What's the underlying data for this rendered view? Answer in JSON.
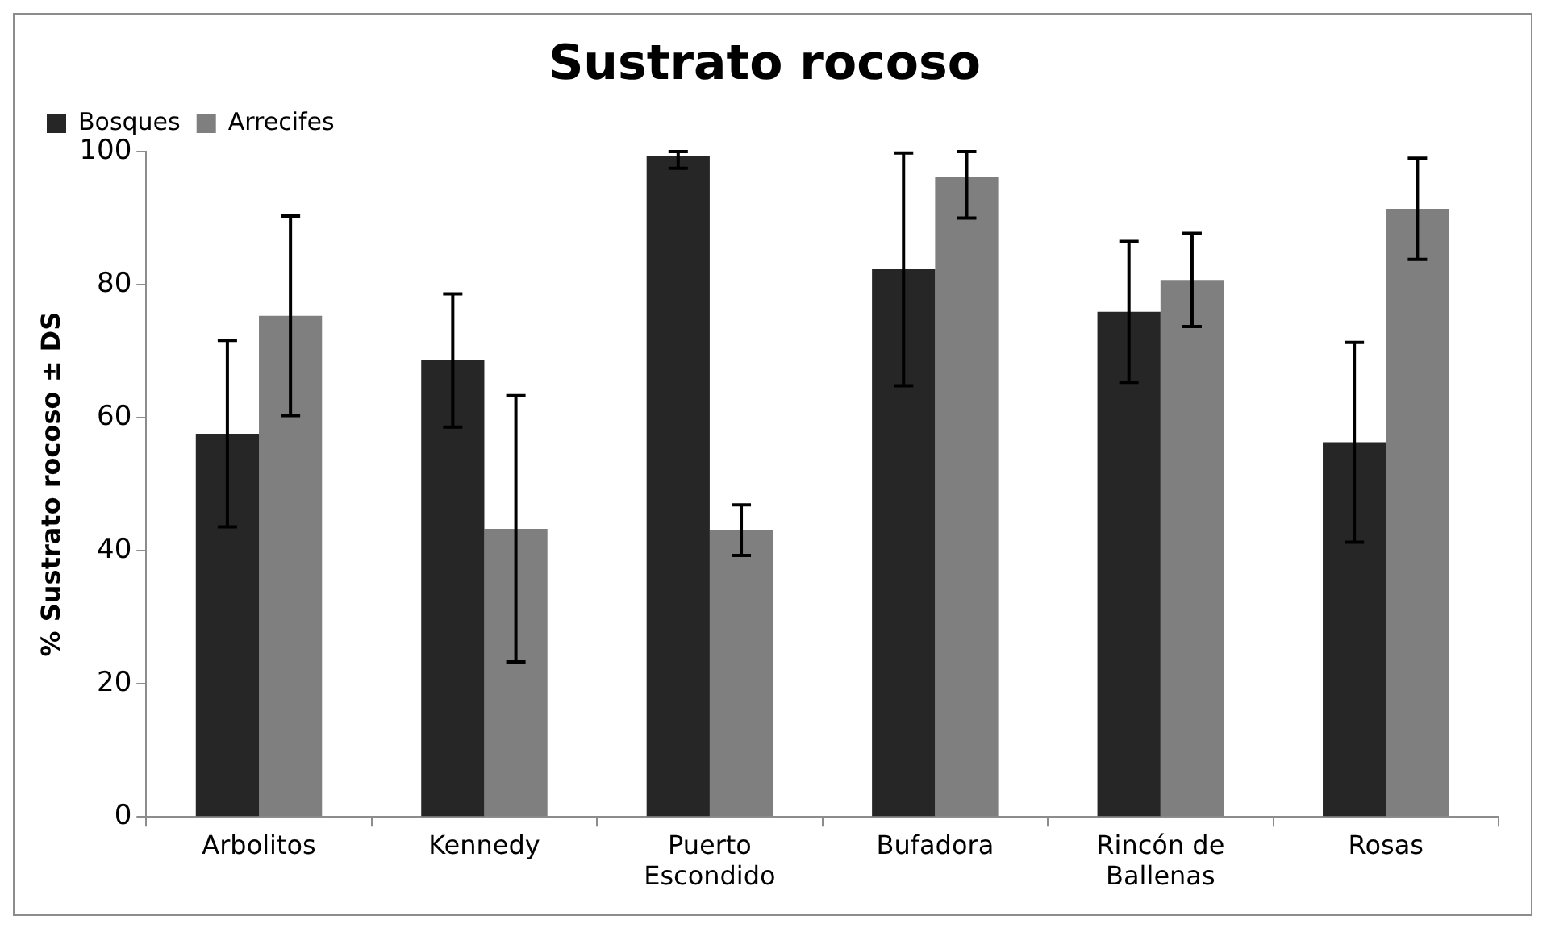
{
  "chart_data": {
    "type": "bar",
    "title": "Sustrato rocoso",
    "ylabel": "% Sustrato rocoso ± DS",
    "categories": [
      "Arbolitos",
      "Kennedy",
      "Puerto Escondido",
      "Bufadora",
      "Rincón de Ballenas",
      "Rosas"
    ],
    "series": [
      {
        "name": "Bosques",
        "color": "#262626",
        "values": [
          57.6,
          68.6,
          99.3,
          82.3,
          75.9,
          56.3
        ],
        "errors": [
          14,
          10,
          [
            97.5,
            100
          ],
          17.5,
          10.6,
          15
        ]
      },
      {
        "name": "Arrecifes",
        "color": "#7f7f7f",
        "values": [
          75.3,
          43.3,
          43.1,
          96.2,
          80.7,
          91.4
        ],
        "errors": [
          15,
          20,
          3.8,
          [
            90,
            100
          ],
          7,
          7.6
        ]
      }
    ],
    "ylim": [
      0,
      100
    ],
    "yticks": [
      0,
      20,
      40,
      60,
      80,
      100
    ],
    "grid": false,
    "legend": "top left"
  }
}
